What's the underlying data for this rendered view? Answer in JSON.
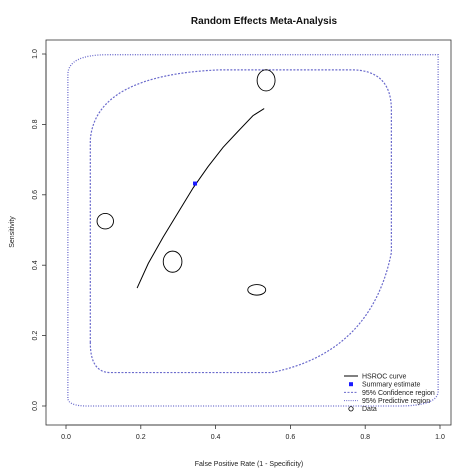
{
  "chart_data": {
    "type": "scatter",
    "title": "Random Effects Meta-Analysis",
    "xlabel": "False Positive Rate (1 - Specificity)",
    "ylabel": "Sensitivity",
    "xlim": [
      0,
      1
    ],
    "ylim": [
      0,
      1
    ],
    "x_ticks": [
      "0.0",
      "0.2",
      "0.4",
      "0.6",
      "0.8",
      "1.0"
    ],
    "y_ticks": [
      "0.0",
      "0.2",
      "0.4",
      "0.6",
      "0.8",
      "1.0"
    ],
    "grid": false,
    "legend_position": "bottom-right",
    "legend": [
      {
        "label": "HSROC curve",
        "symbol": "line",
        "color": "#000000"
      },
      {
        "label": "Summary estimate",
        "symbol": "square",
        "color": "#1a1aff"
      },
      {
        "label": "95% Confidence region",
        "symbol": "dashed",
        "color": "#6a6acc"
      },
      {
        "label": "95% Predictive region",
        "symbol": "dotted",
        "color": "#6a6acc"
      },
      {
        "label": "Data",
        "symbol": "circle",
        "color": "#000000"
      }
    ],
    "hsroc_curve": {
      "x": [
        0.19,
        0.22,
        0.26,
        0.3,
        0.34,
        0.38,
        0.42,
        0.46,
        0.5,
        0.53
      ],
      "y": [
        0.335,
        0.405,
        0.48,
        0.55,
        0.62,
        0.68,
        0.735,
        0.78,
        0.825,
        0.845
      ]
    },
    "summary_estimate": {
      "x": 0.345,
      "y": 0.632
    },
    "data_points": [
      {
        "x": 0.535,
        "y": 0.925,
        "rx": 0.024,
        "ry": 0.03
      },
      {
        "x": 0.105,
        "y": 0.525,
        "rx": 0.022,
        "ry": 0.022
      },
      {
        "x": 0.285,
        "y": 0.41,
        "rx": 0.025,
        "ry": 0.03
      },
      {
        "x": 0.51,
        "y": 0.33,
        "rx": 0.024,
        "ry": 0.015
      }
    ],
    "predictive_region": {
      "x_range": [
        0.005,
        0.995
      ],
      "y_range": [
        0.0,
        0.998
      ]
    },
    "confidence_region": {
      "x_range": [
        0.065,
        0.87
      ],
      "y_range": [
        0.095,
        0.955
      ]
    },
    "colors": {
      "region": "#6a6acc",
      "summary": "#1a1aff",
      "curve": "#000000"
    }
  }
}
